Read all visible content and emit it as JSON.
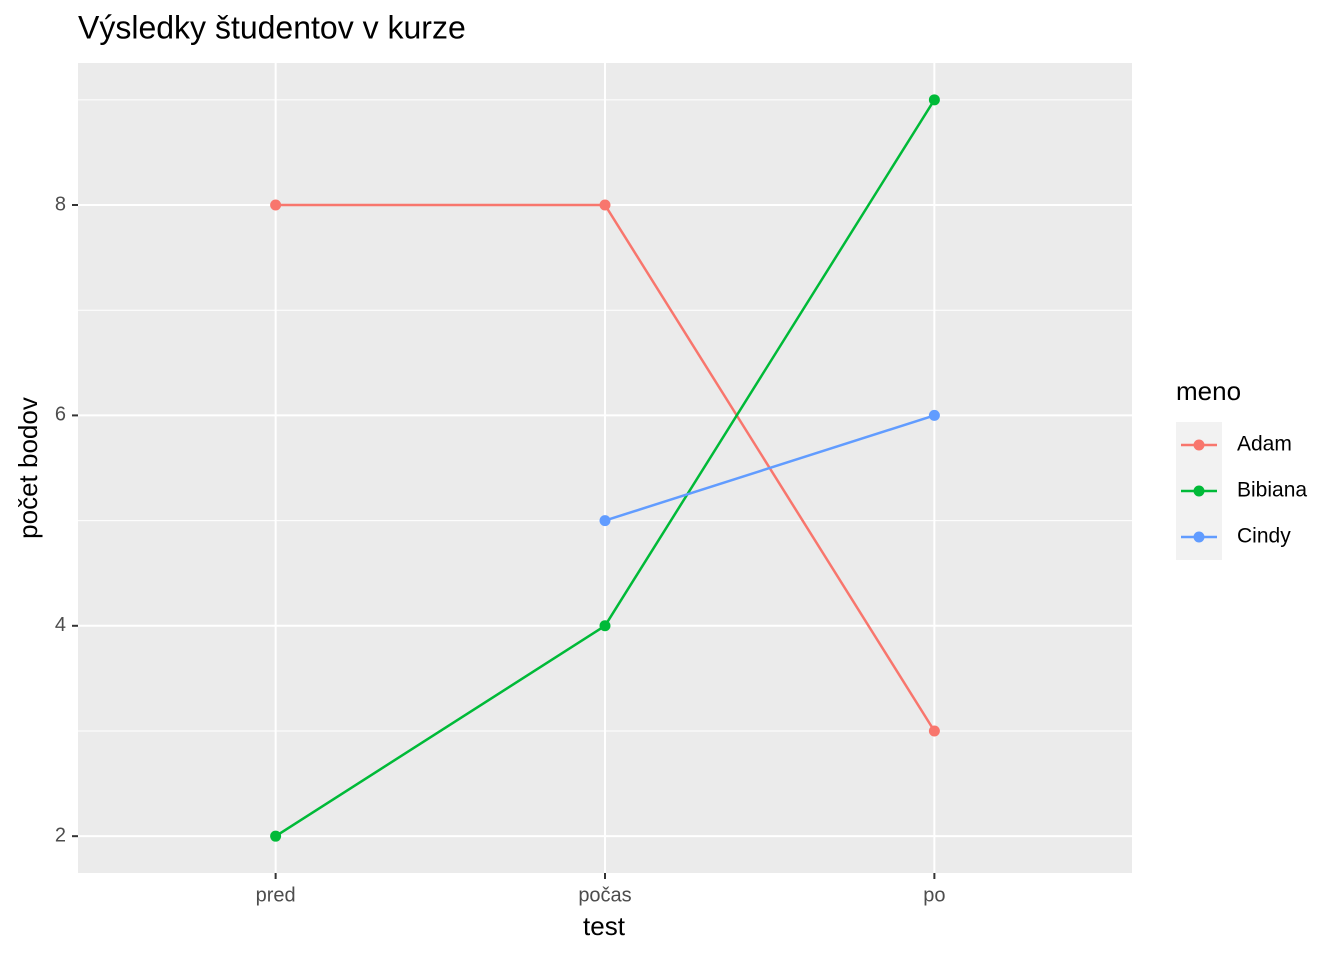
{
  "chart_data": {
    "type": "line",
    "title": "Výsledky študentov v kurze",
    "x_label": "test",
    "y_label": "počet bodov",
    "categories": [
      "pred",
      "počas",
      "po"
    ],
    "series": [
      {
        "name": "Adam",
        "color": "#F8766D",
        "values": [
          8,
          8,
          3
        ]
      },
      {
        "name": "Bibiana",
        "color": "#00BA38",
        "values": [
          2,
          4,
          9
        ]
      },
      {
        "name": "Cindy",
        "color": "#619CFF",
        "values": [
          null,
          5,
          6
        ]
      }
    ],
    "legend_title": "meno",
    "legend_position": "right",
    "ylim": [
      1.65,
      9.35
    ],
    "yticks": [
      2,
      4,
      6,
      8
    ],
    "grid": true
  }
}
